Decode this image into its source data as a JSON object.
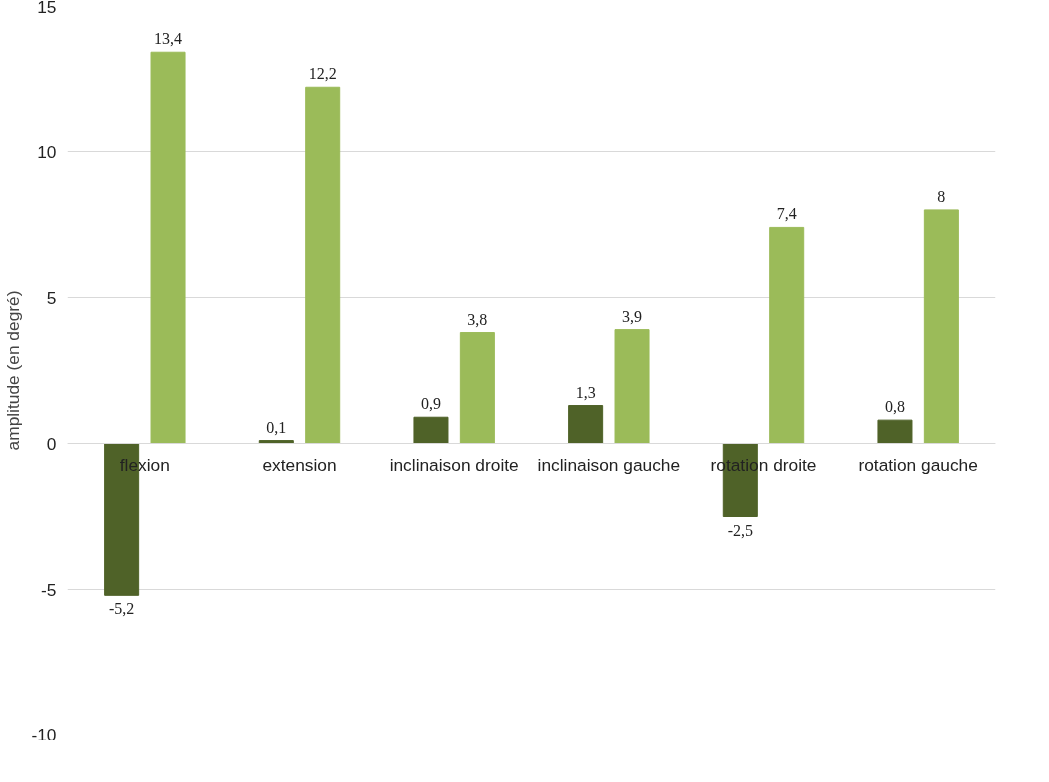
{
  "chart_data": {
    "type": "bar",
    "ylabel": "amplitude (en degré)",
    "categories": [
      "flexion",
      "extension",
      "inclinaison droite",
      "inclinaison gauche",
      "rotation droite",
      "rotation gauche"
    ],
    "series": [
      {
        "color": "#4f6228",
        "values": [
          -5.2,
          0.1,
          0.9,
          1.3,
          -2.5,
          0.8
        ],
        "value_labels": [
          "-5,2",
          "0,1",
          "0,9",
          "1,3",
          "-2,5",
          "0,8"
        ]
      },
      {
        "color": "#9bbb59",
        "values": [
          13.4,
          12.2,
          3.8,
          3.9,
          7.4,
          8
        ],
        "value_labels": [
          "13,4",
          "12,2",
          "3,8",
          "3,9",
          "7,4",
          "8"
        ]
      }
    ],
    "ylim": [
      -10,
      15
    ],
    "yticks": [
      -10,
      -5,
      0,
      5,
      10,
      15
    ],
    "grid": "y"
  }
}
